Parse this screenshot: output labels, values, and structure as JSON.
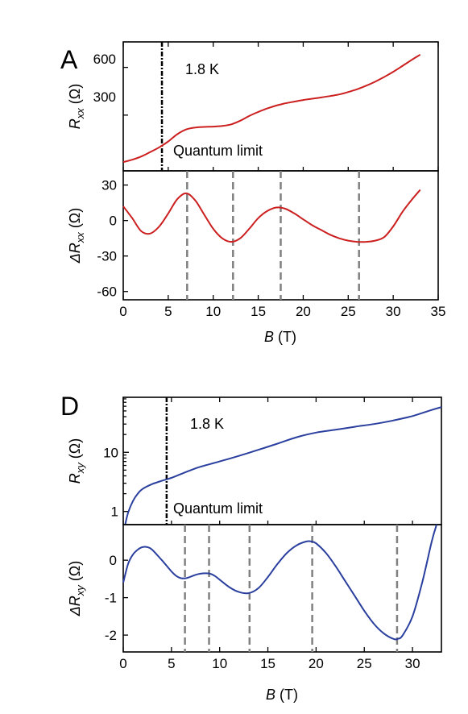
{
  "chart_data": [
    {
      "panel": "A",
      "type": "line",
      "annotations": {
        "temperature": "1.8 K",
        "quantum_limit_label": "Quantum limit",
        "quantum_limit_B": 4.3
      },
      "xlabel": {
        "italic": "B",
        "rest": " (T)"
      },
      "xlim": [
        0,
        35
      ],
      "xticks": [
        "0",
        "5",
        "10",
        "15",
        "20",
        "25",
        "30",
        "35"
      ],
      "color": "#cc1f1f",
      "top": {
        "ylabel": {
          "italic": "R",
          "sub": "xx",
          "rest": " (Ω)"
        },
        "ylim": [
          -50,
          760
        ],
        "yticks": [
          300,
          600
        ],
        "series": {
          "x": [
            0,
            1,
            2,
            3,
            4,
            5,
            6,
            7,
            8,
            9,
            10,
            11,
            12,
            13,
            14,
            15,
            16,
            17,
            18,
            19,
            20,
            21,
            22,
            23,
            24,
            25,
            26,
            27,
            28,
            29,
            30,
            31,
            32,
            33
          ],
          "y": [
            5,
            20,
            40,
            68,
            98,
            135,
            180,
            210,
            222,
            226,
            228,
            232,
            242,
            265,
            295,
            320,
            342,
            360,
            374,
            385,
            395,
            403,
            411,
            420,
            430,
            445,
            463,
            485,
            510,
            540,
            572,
            608,
            645,
            680
          ]
        }
      },
      "bottom": {
        "ylabel": {
          "delta": "Δ",
          "italic": "R",
          "sub": "xx",
          "rest": " (Ω)"
        },
        "ylim": [
          -67,
          42
        ],
        "yticks": [
          -60,
          -30,
          0,
          30
        ],
        "series": {
          "x": [
            0,
            1,
            2,
            3,
            4,
            5,
            6,
            7,
            8,
            9,
            10,
            11,
            12,
            13,
            14,
            15,
            16,
            17,
            18,
            19,
            20,
            21,
            22,
            23,
            24,
            25,
            26,
            27,
            28,
            29,
            30,
            31,
            32,
            33
          ],
          "y": [
            12,
            2,
            -9,
            -11,
            -5,
            6,
            18,
            23,
            17,
            5,
            -7,
            -15,
            -18,
            -15,
            -7,
            2,
            8,
            11,
            10,
            6,
            1,
            -4,
            -8,
            -12,
            -15,
            -17,
            -18,
            -18,
            -17,
            -14,
            -5,
            7,
            17,
            26
          ]
        },
        "dashed_lines_B": [
          7.1,
          12.2,
          17.5,
          26.2
        ]
      }
    },
    {
      "panel": "D",
      "type": "line",
      "annotations": {
        "temperature": "1.8 K",
        "quantum_limit_label": "Quantum limit",
        "quantum_limit_B": 4.5
      },
      "xlabel": {
        "italic": "B",
        "rest": " (T)"
      },
      "xlim": [
        0,
        33
      ],
      "xticks": [
        "0",
        "5",
        "10",
        "15",
        "20",
        "25",
        "30"
      ],
      "color": "#2a3f9e",
      "top": {
        "ylabel": {
          "italic": "R",
          "sub": "xy",
          "rest": " (Ω)"
        },
        "yscale": "log",
        "ylim": [
          0.6,
          85
        ],
        "yticks": [
          1,
          10
        ],
        "series": {
          "x": [
            0.2,
            0.5,
            1,
            1.5,
            2,
            3,
            4,
            5,
            6,
            7,
            8,
            10,
            12,
            14,
            16,
            18,
            20,
            22,
            24,
            26,
            28,
            30,
            32,
            33
          ],
          "y": [
            0.6,
            0.95,
            1.5,
            2.0,
            2.4,
            2.9,
            3.3,
            3.7,
            4.3,
            5.0,
            5.7,
            7.0,
            8.7,
            11.0,
            14.0,
            18.0,
            21.5,
            24.0,
            27.0,
            30.0,
            34.5,
            41.0,
            52.0,
            58.0
          ]
        }
      },
      "bottom": {
        "ylabel": {
          "delta": "Δ",
          "italic": "R",
          "sub": "xy",
          "rest": " (Ω)"
        },
        "ylim": [
          -2.45,
          0.95
        ],
        "yticks": [
          -2,
          -1,
          0
        ],
        "series": {
          "x": [
            0,
            0.5,
            1,
            1.5,
            2,
            2.5,
            3,
            4,
            5,
            5.5,
            6,
            6.5,
            7,
            7.5,
            8,
            8.5,
            9,
            9.5,
            10,
            11,
            12,
            13,
            14,
            15,
            16,
            17,
            18,
            19,
            19.5,
            20,
            21,
            22,
            23,
            24,
            25,
            26,
            27,
            28,
            28.5,
            29,
            30,
            31,
            32,
            32.5
          ],
          "y": [
            -0.6,
            -0.1,
            0.15,
            0.28,
            0.35,
            0.35,
            0.28,
            0.0,
            -0.3,
            -0.42,
            -0.48,
            -0.48,
            -0.44,
            -0.39,
            -0.36,
            -0.35,
            -0.36,
            -0.42,
            -0.52,
            -0.72,
            -0.85,
            -0.88,
            -0.75,
            -0.45,
            -0.1,
            0.2,
            0.4,
            0.5,
            0.5,
            0.45,
            0.2,
            -0.15,
            -0.55,
            -0.95,
            -1.35,
            -1.7,
            -1.95,
            -2.1,
            -2.1,
            -2.0,
            -1.5,
            -0.6,
            0.5,
            0.95
          ]
        },
        "dashed_lines_B": [
          6.4,
          8.9,
          13.1,
          19.6,
          28.4
        ]
      }
    }
  ]
}
